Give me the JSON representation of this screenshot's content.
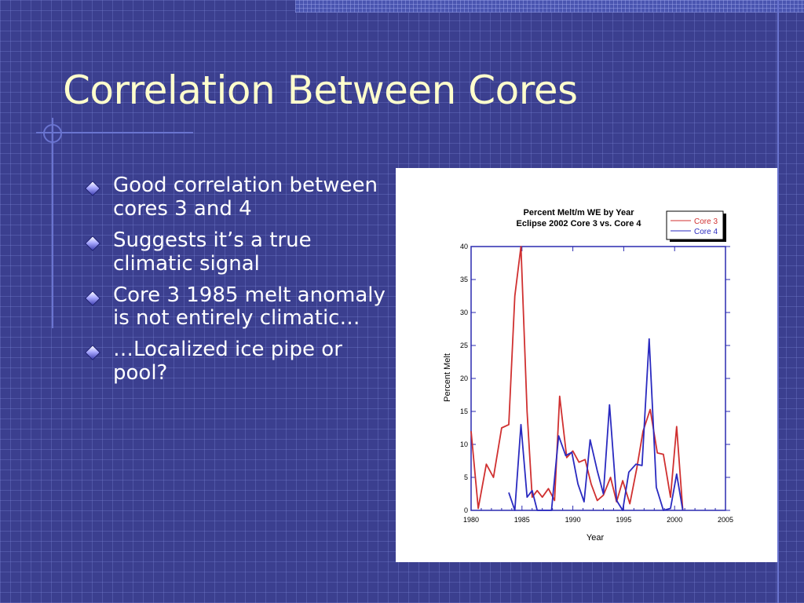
{
  "slide": {
    "title": "Correlation Between Cores",
    "bullets": [
      "Good correlation between cores 3 and 4",
      "Suggests it’s a true climatic signal",
      "Core 3 1985 melt anomaly is not entirely climatic…",
      "…Localized ice pipe or pool?"
    ]
  },
  "colors": {
    "background": "#3b3f8f",
    "title": "#ffffcc",
    "core3": "#d03030",
    "core4": "#2a2ac0",
    "axis": "#2a2ab0"
  },
  "chart_data": {
    "type": "line",
    "title_line1": "Percent  Melt/m  WE  by  Year",
    "title_line2": "Eclipse  2002  Core  3  vs.  Core  4",
    "xlabel": "Year",
    "ylabel": "Percent Melt",
    "xlim": [
      1980,
      2005
    ],
    "ylim": [
      0,
      40
    ],
    "xticks": [
      1980,
      1985,
      1990,
      1995,
      2000,
      2005
    ],
    "yticks": [
      0,
      5,
      10,
      15,
      20,
      25,
      30,
      35,
      40
    ],
    "legend_position": "top-right",
    "series": [
      {
        "name": "Core 3",
        "color": "#d03030",
        "points": [
          [
            1980,
            12
          ],
          [
            1980.7,
            0.3
          ],
          [
            1981.5,
            7
          ],
          [
            1982.2,
            5
          ],
          [
            1983,
            12.5
          ],
          [
            1983.7,
            13
          ],
          [
            1984.3,
            32.5
          ],
          [
            1984.9,
            40
          ],
          [
            1985.5,
            15
          ],
          [
            1986,
            2
          ],
          [
            1986.5,
            3
          ],
          [
            1987,
            2
          ],
          [
            1987.6,
            3.3
          ],
          [
            1988.2,
            1.5
          ],
          [
            1988.7,
            17.3
          ],
          [
            1989.4,
            8
          ],
          [
            1990,
            9
          ],
          [
            1990.6,
            7.3
          ],
          [
            1991.2,
            7.7
          ],
          [
            1991.8,
            4
          ],
          [
            1992.4,
            1.5
          ],
          [
            1993,
            2.3
          ],
          [
            1993.7,
            5
          ],
          [
            1994.3,
            1.3
          ],
          [
            1994.9,
            4.5
          ],
          [
            1995.6,
            1
          ],
          [
            1996.3,
            6.5
          ],
          [
            1996.9,
            12
          ],
          [
            1997.6,
            15.3
          ],
          [
            1998.3,
            8.7
          ],
          [
            1998.9,
            8.5
          ],
          [
            1999.6,
            2
          ],
          [
            2000.2,
            12.7
          ],
          [
            2000.8,
            0
          ]
        ]
      },
      {
        "name": "Core 4",
        "color": "#2a2ac0",
        "points": [
          [
            1983.7,
            2.7
          ],
          [
            1984.3,
            0
          ],
          [
            1984.9,
            13
          ],
          [
            1985.5,
            2
          ],
          [
            1986,
            3
          ],
          [
            1986.5,
            0
          ],
          [
            1987.9,
            0
          ],
          [
            1988.6,
            11.3
          ],
          [
            1989.3,
            8.3
          ],
          [
            1989.9,
            8.8
          ],
          [
            1990.5,
            4
          ],
          [
            1991.1,
            1.3
          ],
          [
            1991.7,
            10.7
          ],
          [
            1992.4,
            6
          ],
          [
            1993,
            2.5
          ],
          [
            1993.6,
            16
          ],
          [
            1994.3,
            1.5
          ],
          [
            1994.9,
            0
          ],
          [
            1995.5,
            5.8
          ],
          [
            1996.2,
            7
          ],
          [
            1996.8,
            6.8
          ],
          [
            1997.5,
            26
          ],
          [
            1998.2,
            3.5
          ],
          [
            1998.9,
            0
          ],
          [
            1999.6,
            0.3
          ],
          [
            2000.2,
            5.5
          ],
          [
            2000.8,
            0
          ]
        ]
      }
    ]
  }
}
